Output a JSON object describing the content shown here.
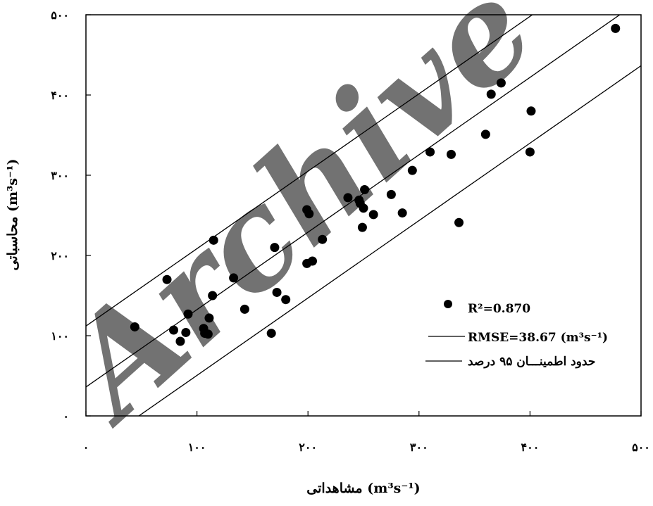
{
  "chart_data": {
    "type": "scatter",
    "watermark": "Archive",
    "xlabel": "مشاهداتی (m³s⁻¹)",
    "ylabel": "محاسباتی (m³s⁻¹)",
    "xlim": [
      0,
      500
    ],
    "ylim": [
      0,
      500
    ],
    "x_ticks": [
      0,
      100,
      200,
      300,
      400,
      500
    ],
    "y_ticks": [
      0,
      100,
      200,
      300,
      400,
      500
    ],
    "x_tick_labels": [
      "۰",
      "۱۰۰",
      "۲۰۰",
      "۳۰۰",
      "۴۰۰",
      "۵۰۰"
    ],
    "y_tick_labels": [
      "۰",
      "۱۰۰",
      "۲۰۰",
      "۳۰۰",
      "۴۰۰",
      "۵۰۰"
    ],
    "grid": false,
    "legend_position": "bottom-right",
    "legend": [
      {
        "label": "R²=0.870",
        "marker": "point"
      },
      {
        "label": "RMSE=38.67 (m³s⁻¹)",
        "marker": "line"
      },
      {
        "label": "حدود اطمینـــان ۹۵ درصد",
        "marker": "line"
      }
    ],
    "points": [
      {
        "x": 44,
        "y": 111
      },
      {
        "x": 73,
        "y": 170
      },
      {
        "x": 79,
        "y": 107
      },
      {
        "x": 85,
        "y": 93
      },
      {
        "x": 90,
        "y": 104
      },
      {
        "x": 92,
        "y": 127
      },
      {
        "x": 106,
        "y": 109
      },
      {
        "x": 107,
        "y": 103
      },
      {
        "x": 110,
        "y": 102
      },
      {
        "x": 111,
        "y": 122
      },
      {
        "x": 114,
        "y": 150
      },
      {
        "x": 115,
        "y": 219
      },
      {
        "x": 133,
        "y": 172
      },
      {
        "x": 143,
        "y": 133
      },
      {
        "x": 167,
        "y": 103
      },
      {
        "x": 170,
        "y": 210
      },
      {
        "x": 172,
        "y": 154
      },
      {
        "x": 180,
        "y": 145
      },
      {
        "x": 199,
        "y": 190
      },
      {
        "x": 199,
        "y": 257
      },
      {
        "x": 201,
        "y": 252
      },
      {
        "x": 204,
        "y": 193
      },
      {
        "x": 213,
        "y": 220
      },
      {
        "x": 236,
        "y": 272
      },
      {
        "x": 246,
        "y": 269
      },
      {
        "x": 247,
        "y": 265
      },
      {
        "x": 249,
        "y": 235
      },
      {
        "x": 250,
        "y": 259
      },
      {
        "x": 251,
        "y": 282
      },
      {
        "x": 259,
        "y": 251
      },
      {
        "x": 275,
        "y": 276
      },
      {
        "x": 285,
        "y": 253
      },
      {
        "x": 294,
        "y": 306
      },
      {
        "x": 310,
        "y": 329
      },
      {
        "x": 329,
        "y": 326
      },
      {
        "x": 336,
        "y": 241
      },
      {
        "x": 360,
        "y": 351
      },
      {
        "x": 365,
        "y": 401
      },
      {
        "x": 374,
        "y": 415
      },
      {
        "x": 400,
        "y": 329
      },
      {
        "x": 401,
        "y": 380
      },
      {
        "x": 477,
        "y": 483
      }
    ],
    "fit_line": {
      "slope": 0.965,
      "intercept": 36
    },
    "upper_limit_line": {
      "slope": 0.965,
      "intercept": 112
    },
    "lower_limit_line": {
      "slope": 0.965,
      "intercept": -46
    }
  }
}
